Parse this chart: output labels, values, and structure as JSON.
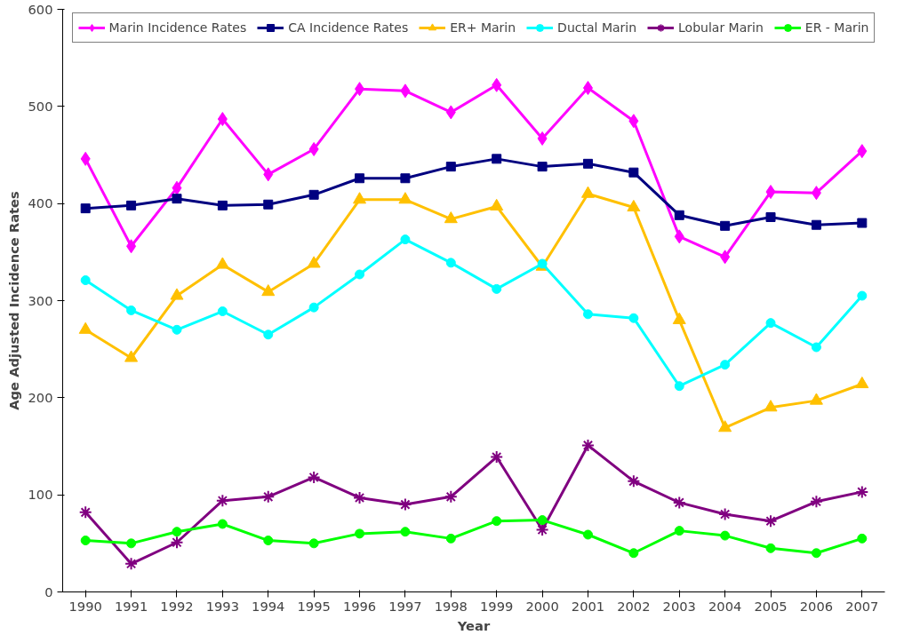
{
  "chart_data": {
    "type": "line",
    "xlabel": "Year",
    "ylabel": "Age Adjusted Incidence Rates",
    "categories": [
      "1990",
      "1991",
      "1992",
      "1993",
      "1994",
      "1995",
      "1996",
      "1997",
      "1998",
      "1999",
      "2000",
      "2001",
      "2002",
      "2003",
      "2004",
      "2005",
      "2006",
      "2007"
    ],
    "ylim": [
      0,
      600
    ],
    "yticks": [
      0,
      100,
      200,
      300,
      400,
      500,
      600
    ],
    "grid": false,
    "legend": "top",
    "series": [
      {
        "name": "Marin Incidence Rates",
        "color": "#ff00ff",
        "marker": "diamond",
        "values": [
          446,
          356,
          416,
          487,
          430,
          456,
          518,
          516,
          494,
          522,
          467,
          519,
          485,
          366,
          345,
          412,
          411,
          454
        ]
      },
      {
        "name": "CA Incidence Rates",
        "color": "#000080",
        "marker": "square",
        "values": [
          395,
          398,
          405,
          398,
          399,
          409,
          426,
          426,
          438,
          446,
          438,
          441,
          432,
          388,
          377,
          386,
          378,
          380
        ]
      },
      {
        "name": "ER+ Marin",
        "color": "#ffc000",
        "marker": "triangle",
        "values": [
          270,
          241,
          305,
          337,
          309,
          338,
          404,
          404,
          384,
          397,
          335,
          410,
          396,
          280,
          169,
          190,
          197,
          214
        ]
      },
      {
        "name": "Ductal Marin",
        "color": "#00ffff",
        "marker": "circle",
        "values": [
          321,
          290,
          270,
          289,
          265,
          293,
          327,
          363,
          339,
          312,
          338,
          286,
          282,
          212,
          234,
          277,
          252,
          305
        ]
      },
      {
        "name": "Lobular Marin",
        "color": "#800080",
        "marker": "cross",
        "values": [
          82,
          29,
          51,
          94,
          98,
          118,
          97,
          90,
          98,
          139,
          64,
          151,
          114,
          92,
          80,
          73,
          93,
          103
        ]
      },
      {
        "name": "ER - Marin",
        "color": "#00ff00",
        "marker": "circle",
        "values": [
          53,
          50,
          62,
          70,
          53,
          50,
          60,
          62,
          55,
          73,
          74,
          59,
          40,
          63,
          58,
          45,
          40,
          55
        ]
      }
    ]
  }
}
